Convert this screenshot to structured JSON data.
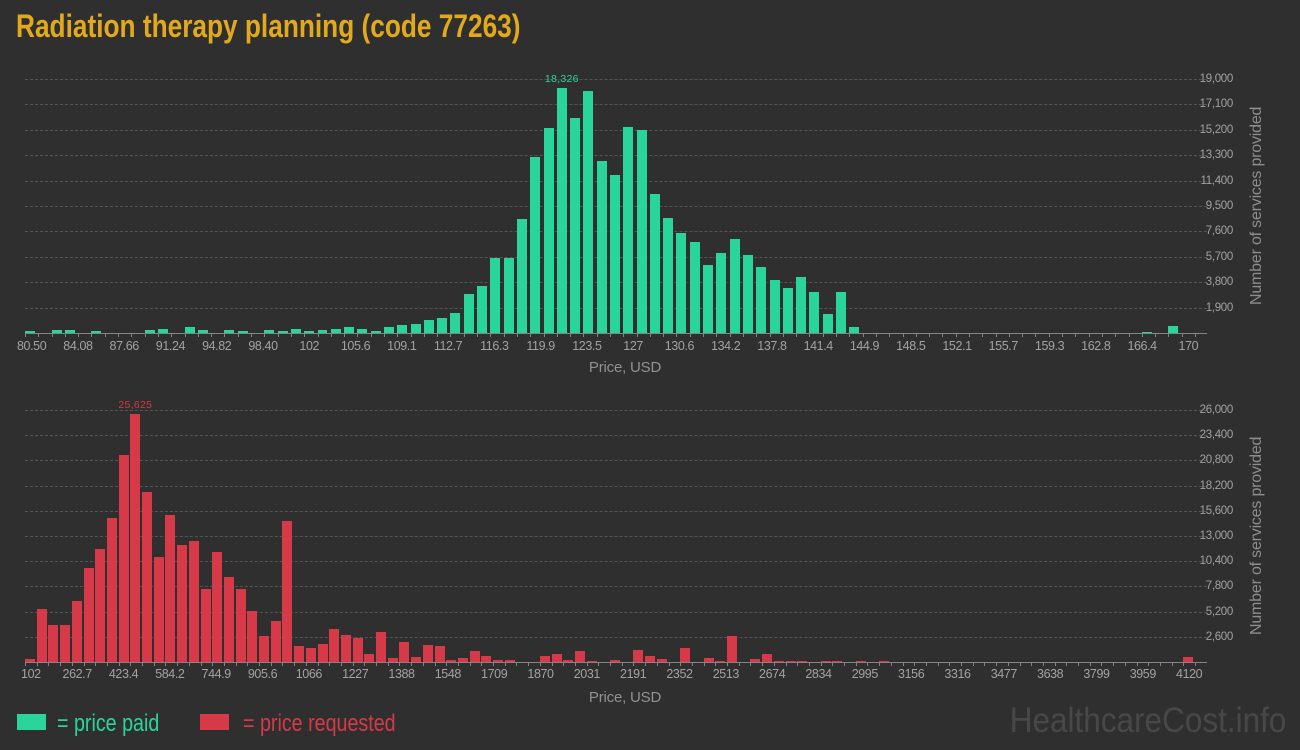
{
  "title": "Radiation therapy planning (code 77263)",
  "watermark": "HealthcareCost.info",
  "colors": {
    "background": "#2f2f2f",
    "title": "#e2a91c",
    "paid": "#29d59a",
    "requested": "#d63947",
    "axis_text": "#a2a2a2",
    "axis_title_text": "#8d8d8d",
    "gridline": "#545454",
    "axis_line": "#848484",
    "watermark": "#484848"
  },
  "legend": {
    "paid_label": "= price paid",
    "requested_label": "= price requested"
  },
  "chart_data": [
    {
      "type": "bar",
      "name": "price-paid-histogram",
      "series": "price paid",
      "color_key": "paid",
      "xlabel": "Price, USD",
      "ylabel": "Number of services provided",
      "x_range": [
        80.5,
        170
      ],
      "y_max": 19000,
      "grid": true,
      "peak_label": "18,326",
      "x_ticks": [
        "80.50",
        "84.08",
        "87.66",
        "91.24",
        "94.82",
        "98.40",
        "102",
        "105.6",
        "109.1",
        "112.7",
        "116.3",
        "119.9",
        "123.5",
        "127",
        "130.6",
        "134.2",
        "137.8",
        "141.4",
        "144.9",
        "148.5",
        "152.1",
        "155.7",
        "159.3",
        "162.8",
        "166.4",
        "170"
      ],
      "y_ticks": [
        "1,900",
        "3,800",
        "5,700",
        "7,600",
        "9,500",
        "11,400",
        "13,300",
        "15,200",
        "17,100",
        "19,000"
      ],
      "values": [
        170,
        0,
        220,
        220,
        0,
        120,
        0,
        0,
        0,
        220,
        270,
        0,
        420,
        220,
        0,
        220,
        170,
        0,
        220,
        170,
        320,
        120,
        220,
        270,
        420,
        320,
        170,
        420,
        570,
        670,
        970,
        1100,
        1500,
        2900,
        3500,
        5600,
        5600,
        8500,
        13200,
        15300,
        18326,
        16100,
        18100,
        12900,
        11800,
        15400,
        15200,
        10400,
        8600,
        7500,
        6800,
        5100,
        6000,
        7000,
        5800,
        4900,
        4000,
        3400,
        4200,
        3100,
        1400,
        3100,
        450,
        0,
        0,
        0,
        0,
        0,
        0,
        0,
        0,
        0,
        0,
        0,
        0,
        0,
        0,
        0,
        0,
        0,
        0,
        0,
        0,
        0,
        80,
        0,
        550,
        0
      ]
    },
    {
      "type": "bar",
      "name": "price-requested-histogram",
      "series": "price requested",
      "color_key": "requested",
      "xlabel": "Price, USD",
      "ylabel": "Number of services provided",
      "x_range": [
        102,
        4120
      ],
      "y_max": 26000,
      "grid": true,
      "peak_label": "25,625",
      "x_ticks": [
        "102",
        "262.7",
        "423.4",
        "584.2",
        "744.9",
        "905.6",
        "1066",
        "1227",
        "1388",
        "1548",
        "1709",
        "1870",
        "2031",
        "2191",
        "2352",
        "2513",
        "2674",
        "2834",
        "2995",
        "3156",
        "3316",
        "3477",
        "3638",
        "3799",
        "3959",
        "4120"
      ],
      "y_ticks": [
        "2,600",
        "5,200",
        "7,800",
        "10,400",
        "13,000",
        "15,600",
        "18,200",
        "20,800",
        "23,400",
        "26,000"
      ],
      "values": [
        350,
        5500,
        3850,
        3850,
        6270,
        9700,
        11630,
        14860,
        21400,
        25625,
        17500,
        10800,
        15170,
        12070,
        12490,
        7530,
        11350,
        8770,
        7530,
        5260,
        2680,
        4230,
        14550,
        1650,
        1440,
        1860,
        3400,
        2790,
        2480,
        820,
        3100,
        410,
        2060,
        520,
        1750,
        1650,
        200,
        400,
        1130,
        590,
        170,
        170,
        0,
        0,
        590,
        860,
        170,
        1140,
        100,
        0,
        170,
        0,
        1270,
        590,
        340,
        0,
        1410,
        0,
        410,
        100,
        2680,
        0,
        310,
        790,
        100,
        100,
        100,
        0,
        100,
        100,
        0,
        100,
        0,
        150,
        0,
        0,
        0,
        0,
        0,
        0,
        0,
        0,
        0,
        0,
        0,
        0,
        0,
        0,
        0,
        0,
        0,
        0,
        0,
        0,
        0,
        0,
        0,
        0,
        0,
        550
      ]
    }
  ]
}
